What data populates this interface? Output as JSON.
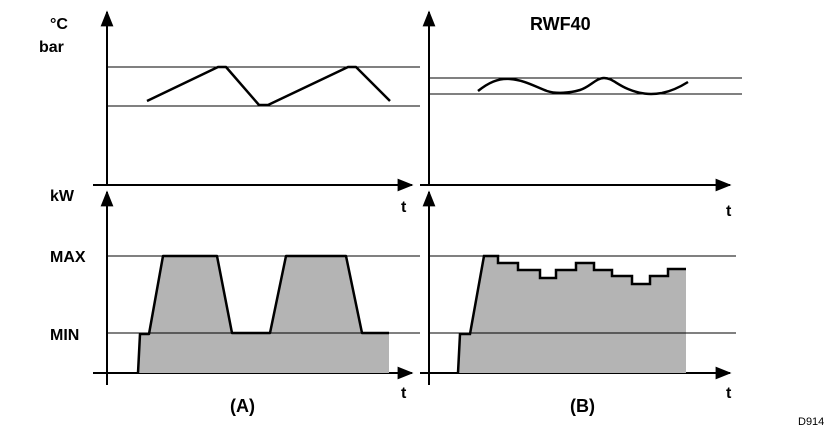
{
  "units": {
    "temp": "°C",
    "pressure": "bar",
    "power": "kW"
  },
  "axes": {
    "time": "t"
  },
  "levels": {
    "max": "MAX",
    "min": "MIN"
  },
  "panels": {
    "right_title": "RWF40",
    "left_caption": "(A)",
    "right_caption": "(B)"
  },
  "figure_code": "D914",
  "colors": {
    "fill": "#b4b4b4",
    "line": "#000000"
  }
}
